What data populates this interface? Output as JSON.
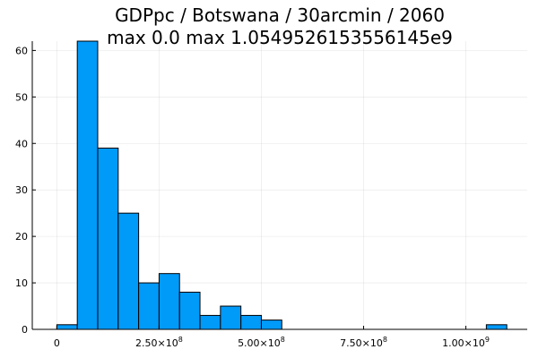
{
  "chart_data": {
    "type": "bar",
    "title": "GDPpc / Botswana / 30arcmin / 2060",
    "subtitle": "max 0.0  max 1.0549526153556145e9",
    "xlabel": "",
    "ylabel": "",
    "bin_width": 50000000,
    "bins": [
      {
        "x0": 0,
        "x1": 50000000,
        "count": 1
      },
      {
        "x0": 50000000,
        "x1": 100000000,
        "count": 62
      },
      {
        "x0": 100000000,
        "x1": 150000000,
        "count": 39
      },
      {
        "x0": 150000000,
        "x1": 200000000,
        "count": 25
      },
      {
        "x0": 200000000,
        "x1": 250000000,
        "count": 10
      },
      {
        "x0": 250000000,
        "x1": 300000000,
        "count": 12
      },
      {
        "x0": 300000000,
        "x1": 350000000,
        "count": 8
      },
      {
        "x0": 350000000,
        "x1": 400000000,
        "count": 3
      },
      {
        "x0": 400000000,
        "x1": 450000000,
        "count": 5
      },
      {
        "x0": 450000000,
        "x1": 500000000,
        "count": 3
      },
      {
        "x0": 500000000,
        "x1": 550000000,
        "count": 2
      },
      {
        "x0": 1050000000,
        "x1": 1100000000,
        "count": 1
      }
    ],
    "xlim": [
      -60000000,
      1150000000
    ],
    "ylim": [
      0,
      62
    ],
    "xticks": [
      {
        "value": 0,
        "mantissa": "0",
        "exp": ""
      },
      {
        "value": 250000000,
        "mantissa": "2.50×10",
        "exp": "8"
      },
      {
        "value": 500000000,
        "mantissa": "5.00×10",
        "exp": "8"
      },
      {
        "value": 750000000,
        "mantissa": "7.50×10",
        "exp": "8"
      },
      {
        "value": 1000000000,
        "mantissa": "1.00×10",
        "exp": "9"
      }
    ],
    "yticks": [
      0,
      10,
      20,
      30,
      40,
      50,
      60
    ],
    "grid": true,
    "legend": "none",
    "bar_color": "#009af9"
  }
}
